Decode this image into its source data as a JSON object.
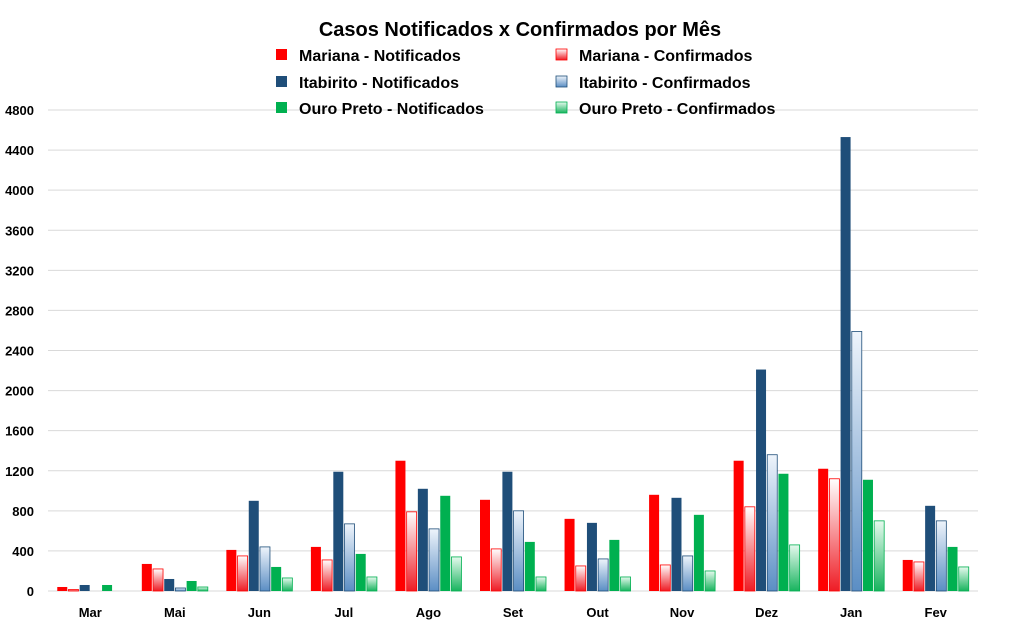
{
  "chart_data": {
    "type": "bar",
    "title": "Casos Notificados x Confirmados por Mês",
    "xlabel": "",
    "ylabel": "",
    "ylim": [
      0,
      4800
    ],
    "yticks": [
      0,
      400,
      800,
      1200,
      1600,
      2000,
      2400,
      2800,
      3200,
      3600,
      4000,
      4400,
      4800
    ],
    "grid": true,
    "legend_position": "top",
    "categories": [
      "Mar",
      "Mai",
      "Jun",
      "Jul",
      "Ago",
      "Set",
      "Out",
      "Nov",
      "Dez",
      "Jan",
      "Fev"
    ],
    "series": [
      {
        "name": "Mariana - Notificados",
        "color": "#ff0000",
        "style": "solid",
        "values": [
          40,
          270,
          410,
          440,
          1300,
          910,
          720,
          960,
          1300,
          1220,
          310
        ]
      },
      {
        "name": "Mariana - Confirmados",
        "color": "#e8414b",
        "style": "gradient",
        "values": [
          15,
          220,
          350,
          310,
          790,
          420,
          250,
          260,
          840,
          1120,
          290
        ]
      },
      {
        "name": "Itabirito - Notificados",
        "color": "#1f4e79",
        "style": "solid",
        "values": [
          60,
          120,
          900,
          1190,
          1020,
          1190,
          680,
          930,
          2210,
          4530,
          850
        ]
      },
      {
        "name": "Itabirito - Confirmados",
        "color": "#7ea6cf",
        "style": "gradient",
        "values": [
          0,
          30,
          440,
          670,
          620,
          800,
          320,
          350,
          1360,
          2590,
          700
        ]
      },
      {
        "name": "Ouro Preto - Notificados",
        "color": "#00b050",
        "style": "solid",
        "values": [
          60,
          100,
          240,
          370,
          950,
          490,
          510,
          760,
          1170,
          1110,
          440
        ]
      },
      {
        "name": "Ouro Preto - Confirmados",
        "color": "#4fc08a",
        "style": "gradient",
        "values": [
          0,
          40,
          130,
          140,
          340,
          140,
          140,
          200,
          460,
          700,
          240
        ]
      }
    ]
  }
}
